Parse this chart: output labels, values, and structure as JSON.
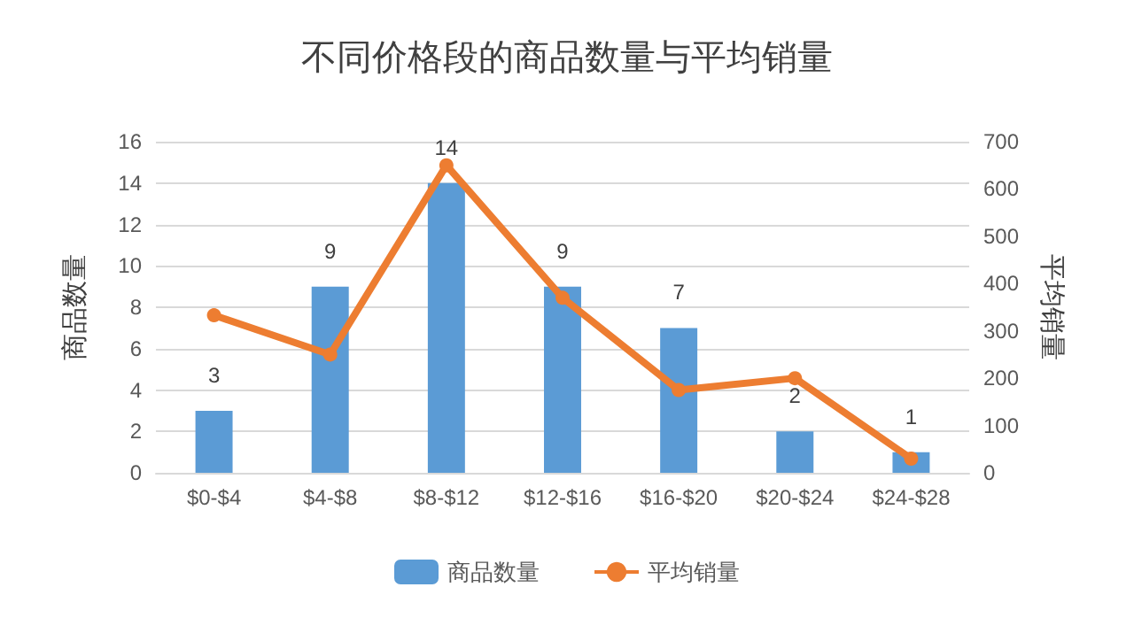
{
  "chart_data": {
    "type": "bar",
    "title": "不同价格段的商品数量与平均销量",
    "ylabel": "商品数量",
    "y2label": "平均销量",
    "categories": [
      "$0-$4",
      "$4-$8",
      "$8-$12",
      "$12-$16",
      "$16-$20",
      "$20-$24",
      "$24-$28"
    ],
    "series": [
      {
        "name": "商品数量",
        "color": "#5b9bd5",
        "values": [
          3,
          9,
          14,
          9,
          7,
          2,
          1
        ],
        "value_labels": [
          "3",
          "9",
          "14",
          "9",
          "7",
          "2",
          "1"
        ]
      },
      {
        "name": "平均销量",
        "type": "line",
        "axis": "y2",
        "color": "#ed7d31",
        "marker": "circle",
        "values": [
          333,
          250,
          650,
          370,
          175,
          200,
          30
        ]
      }
    ],
    "ylim": [
      0,
      16
    ],
    "yticks": [
      0,
      2,
      4,
      6,
      8,
      10,
      12,
      14,
      16
    ],
    "y2lim": [
      0,
      700
    ],
    "y2ticks": [
      0,
      100,
      200,
      300,
      400,
      500,
      600,
      700
    ],
    "grid": "y",
    "legend": "bottom"
  }
}
